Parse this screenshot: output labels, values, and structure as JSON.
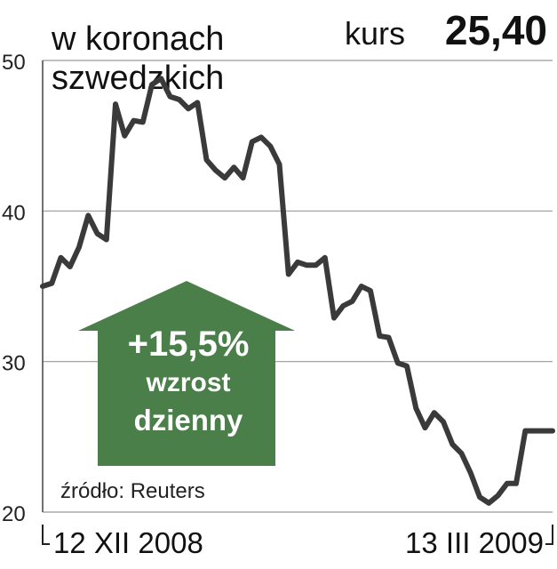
{
  "chart_data": {
    "type": "line",
    "title": [
      "w koronach",
      "szwedzkich"
    ],
    "price_label": "kurs",
    "price": "25,40",
    "annotation": [
      "+15,5%",
      "wzrost",
      "dzienny"
    ],
    "source": "źródło: Reuters",
    "categories": [
      "12 XII 2008",
      null,
      null,
      null,
      null,
      null,
      null,
      null,
      null,
      null,
      null,
      null,
      null,
      null,
      null,
      null,
      null,
      null,
      null,
      null,
      null,
      null,
      null,
      null,
      null,
      null,
      null,
      null,
      null,
      null,
      null,
      null,
      null,
      null,
      null,
      null,
      null,
      null,
      null,
      null,
      null,
      null,
      null,
      null,
      null,
      null,
      null,
      null,
      null,
      null,
      null,
      null,
      null,
      null,
      null,
      null,
      "13 III 2009"
    ],
    "values": [
      35.0,
      35.2,
      36.9,
      36.3,
      37.6,
      39.7,
      38.5,
      38.1,
      47.1,
      45.0,
      46.0,
      45.9,
      48.4,
      48.8,
      47.6,
      47.4,
      46.8,
      47.2,
      43.4,
      42.7,
      42.2,
      42.9,
      42.2,
      44.6,
      44.9,
      44.3,
      43.1,
      35.8,
      36.6,
      36.4,
      36.4,
      36.9,
      32.9,
      33.7,
      34.0,
      35.0,
      34.7,
      31.7,
      31.6,
      29.9,
      29.7,
      26.9,
      25.6,
      26.6,
      26.0,
      24.5,
      23.9,
      22.6,
      21.0,
      20.6,
      21.1,
      21.9,
      21.9,
      25.4,
      25.4,
      25.4,
      25.4
    ],
    "color": "#3a3a3a",
    "ylim": [
      20,
      50
    ],
    "yticks": [
      20,
      30,
      40,
      50
    ],
    "grid": true
  }
}
